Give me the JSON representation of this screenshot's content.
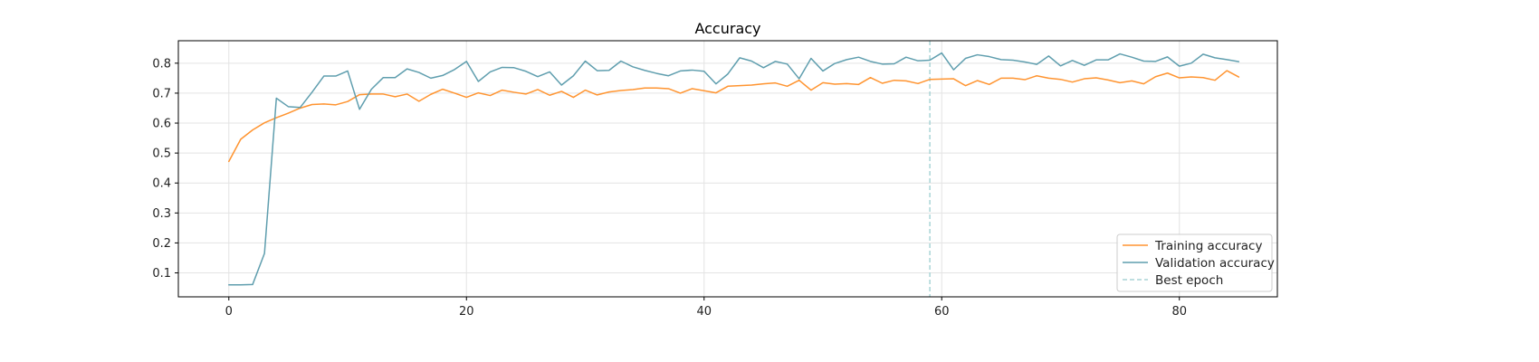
{
  "chart_data": {
    "type": "line",
    "title": "Accuracy",
    "xlabel": "",
    "ylabel": "",
    "xlim": [
      -4.25,
      88.25
    ],
    "ylim": [
      0.02,
      0.875
    ],
    "xticks": [
      0,
      20,
      40,
      60,
      80
    ],
    "yticks": [
      0.1,
      0.2,
      0.3,
      0.4,
      0.5,
      0.6,
      0.7,
      0.8
    ],
    "grid": true,
    "legend_position": "lower-right",
    "best_epoch": 59,
    "best_epoch_label": "Best epoch",
    "series": [
      {
        "name": "Training accuracy",
        "color": "#ff9430",
        "values": [
          0.472,
          0.546,
          0.577,
          0.601,
          0.618,
          0.633,
          0.65,
          0.662,
          0.664,
          0.661,
          0.672,
          0.695,
          0.697,
          0.697,
          0.688,
          0.697,
          0.673,
          0.696,
          0.713,
          0.7,
          0.686,
          0.701,
          0.692,
          0.71,
          0.703,
          0.697,
          0.712,
          0.693,
          0.706,
          0.686,
          0.71,
          0.694,
          0.704,
          0.709,
          0.712,
          0.717,
          0.717,
          0.715,
          0.7,
          0.715,
          0.708,
          0.701,
          0.723,
          0.725,
          0.727,
          0.731,
          0.734,
          0.723,
          0.743,
          0.71,
          0.735,
          0.73,
          0.732,
          0.729,
          0.752,
          0.733,
          0.743,
          0.741,
          0.732,
          0.746,
          0.747,
          0.748,
          0.725,
          0.742,
          0.729,
          0.75,
          0.75,
          0.745,
          0.758,
          0.75,
          0.746,
          0.737,
          0.748,
          0.751,
          0.744,
          0.735,
          0.741,
          0.731,
          0.755,
          0.767,
          0.751,
          0.754,
          0.752,
          0.743,
          0.775,
          0.754
        ]
      },
      {
        "name": "Validation accuracy",
        "color": "#5f9eae",
        "values": [
          0.06,
          0.06,
          0.061,
          0.165,
          0.683,
          0.655,
          0.652,
          0.703,
          0.757,
          0.757,
          0.774,
          0.646,
          0.713,
          0.752,
          0.752,
          0.781,
          0.769,
          0.75,
          0.759,
          0.779,
          0.806,
          0.739,
          0.771,
          0.786,
          0.785,
          0.773,
          0.755,
          0.771,
          0.727,
          0.758,
          0.807,
          0.775,
          0.776,
          0.807,
          0.788,
          0.776,
          0.766,
          0.758,
          0.774,
          0.777,
          0.773,
          0.731,
          0.764,
          0.818,
          0.807,
          0.785,
          0.806,
          0.797,
          0.748,
          0.816,
          0.774,
          0.799,
          0.812,
          0.82,
          0.806,
          0.797,
          0.798,
          0.82,
          0.808,
          0.81,
          0.834,
          0.778,
          0.816,
          0.828,
          0.822,
          0.812,
          0.81,
          0.804,
          0.796,
          0.824,
          0.791,
          0.809,
          0.793,
          0.811,
          0.811,
          0.831,
          0.82,
          0.807,
          0.806,
          0.821,
          0.79,
          0.8,
          0.83,
          0.818,
          0.812,
          0.805
        ]
      }
    ]
  }
}
